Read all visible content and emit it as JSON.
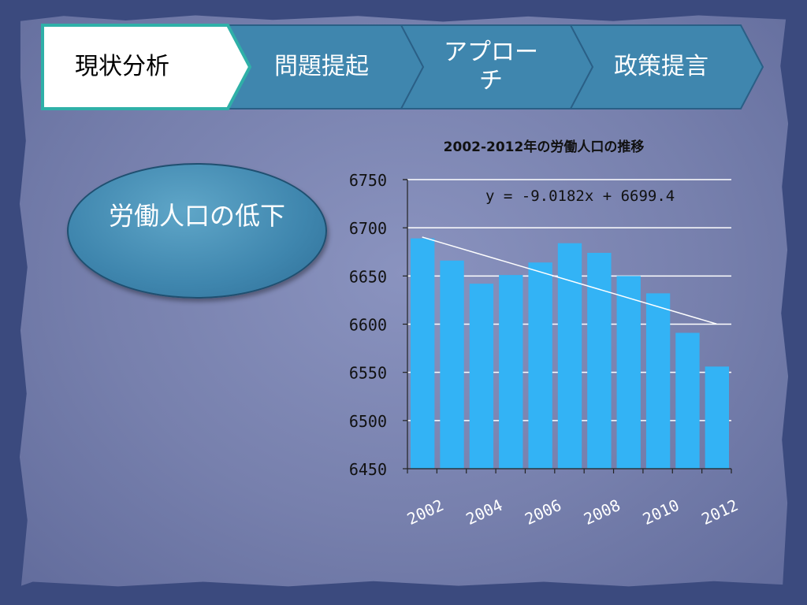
{
  "steps": [
    {
      "label": "現状分析",
      "active": true
    },
    {
      "label": "問題提起",
      "active": false
    },
    {
      "label": "アプローチ",
      "active": false
    },
    {
      "label": "政策提言",
      "active": false
    }
  ],
  "callout": {
    "label": "労働人口の低下"
  },
  "colors": {
    "bar": "#33b3f5",
    "step_fill": "#3f86ae",
    "step_active": "#ffffff",
    "oval": "#3f86ae"
  },
  "chart_data": {
    "type": "bar",
    "title": "2002-2012年の労働人口の推移",
    "categories": [
      "2002",
      "2003",
      "2004",
      "2005",
      "2006",
      "2007",
      "2008",
      "2009",
      "2010",
      "2011",
      "2012"
    ],
    "values": [
      6689,
      6666,
      6642,
      6651,
      6664,
      6684,
      6674,
      6650,
      6632,
      6591,
      6556
    ],
    "xtick_labels": [
      "2002",
      "2004",
      "2006",
      "2008",
      "2010",
      "2012"
    ],
    "ylim": [
      6450,
      6750
    ],
    "yticks": [
      6450,
      6500,
      6550,
      6600,
      6650,
      6700,
      6750
    ],
    "grid": true,
    "trendline": {
      "slope": -9.0182,
      "intercept": 6699.4,
      "equation": "y = -9.0182x + 6699.4"
    }
  }
}
